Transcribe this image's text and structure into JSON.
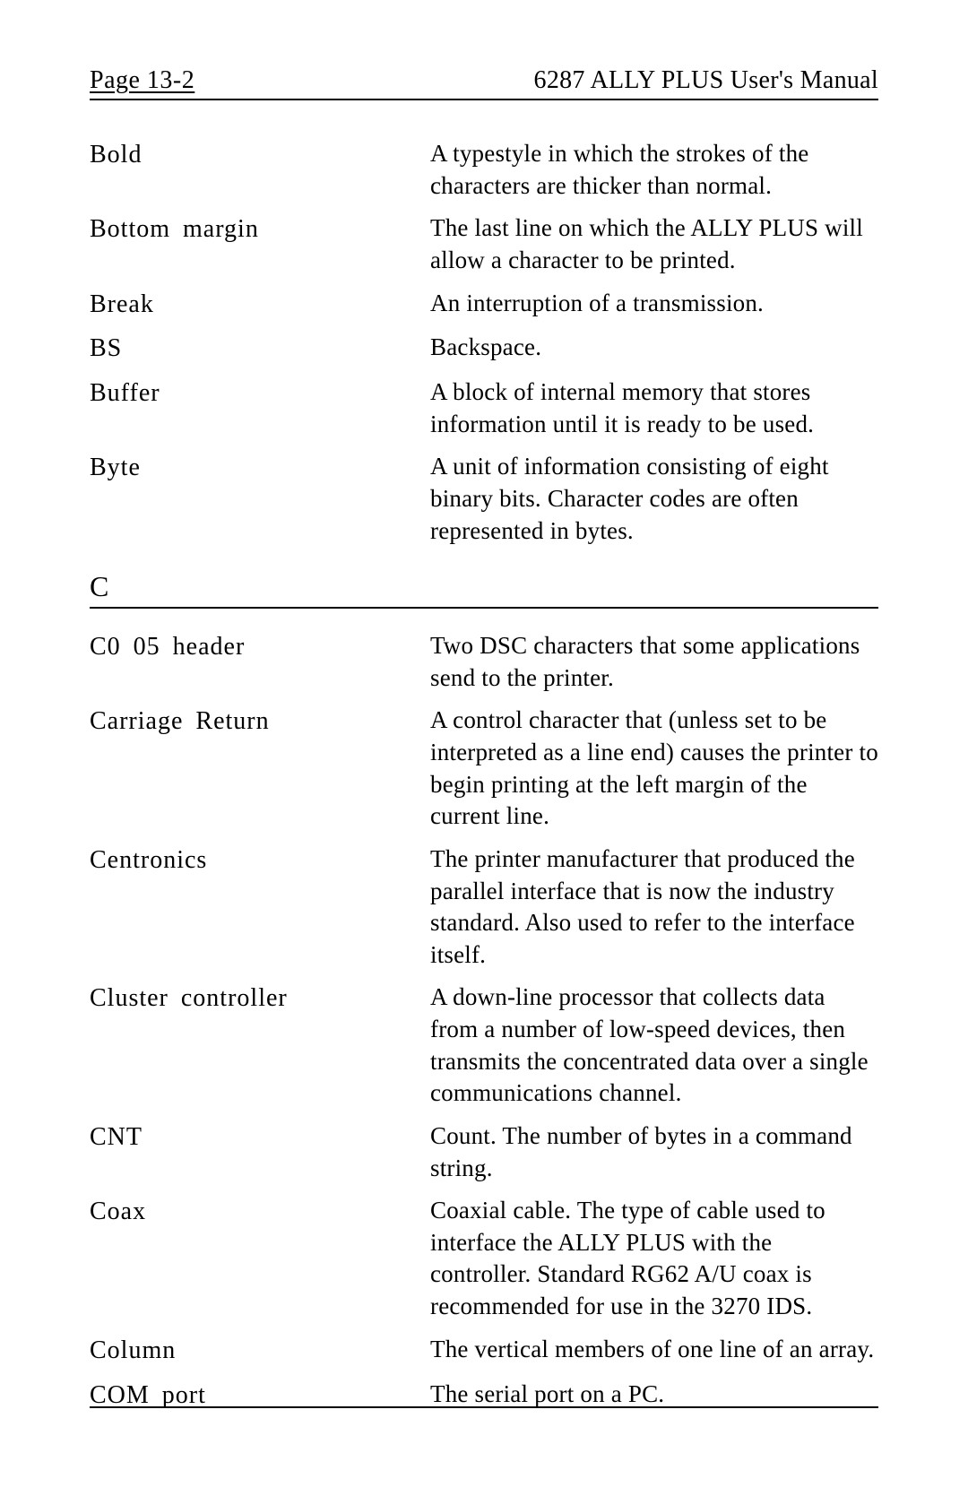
{
  "header": {
    "page_label": "Page 13-2",
    "doc_title": "6287 ALLY PLUS User's Manual"
  },
  "entries_top": [
    {
      "term": "Bold",
      "def": "A typestyle in which the strokes of the characters are thicker than normal."
    },
    {
      "term": "Bottom margin",
      "def": "The last line on which the ALLY PLUS will allow a character to be printed."
    },
    {
      "term": "Break",
      "def": "An interruption of a transmission."
    },
    {
      "term": "BS",
      "def": "Backspace."
    },
    {
      "term": "Buffer",
      "def": "A block of internal memory that stores information until it is ready to be used."
    },
    {
      "term": "Byte",
      "def": "A unit of information consisting of eight binary bits. Character codes are often represented in bytes."
    }
  ],
  "section_letter": "C",
  "entries_c": [
    {
      "term": "C0 05 header",
      "def": "Two DSC characters that some applications send to the printer."
    },
    {
      "term": "Carriage Return",
      "def": "A control character that (unless set to be interpreted as a line end) causes the printer to begin printing at the left margin of the current line."
    },
    {
      "term": "Centronics",
      "def": "The printer manufacturer that produced the parallel interface that is now the industry standard. Also used to refer to the interface itself."
    },
    {
      "term": "Cluster controller",
      "def": "A down-line processor that collects data from a number of low-speed devices, then transmits the concentrated data over a single communications channel."
    },
    {
      "term": "CNT",
      "def": "Count. The number of bytes in a command string."
    },
    {
      "term": "Coax",
      "def": "Coaxial cable. The type of cable used to interface the ALLY PLUS with the controller. Standard RG62 A/U coax is recommended for use in the 3270 IDS."
    },
    {
      "term": "Column",
      "def": "The vertical members of one line of an array."
    },
    {
      "term": "COM port",
      "def": "The serial port on a PC."
    }
  ]
}
